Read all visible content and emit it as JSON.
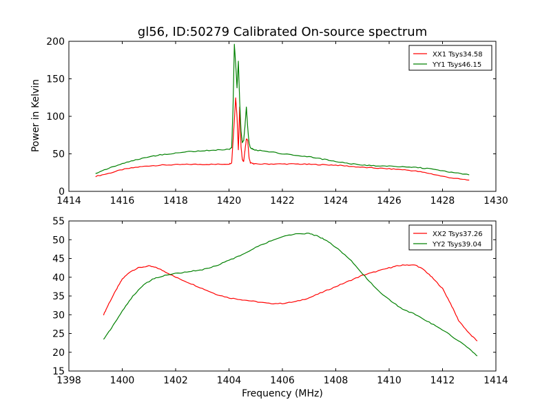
{
  "figure": {
    "title": "gl56, ID:50279 Calibrated On-source spectrum",
    "top_ylabel": "Power in Kelvin",
    "bottom_xlabel": "Frequency (MHz)"
  },
  "chart_data": [
    {
      "type": "line",
      "title": "gl56, ID:50279 Calibrated On-source spectrum",
      "xlabel": "",
      "ylabel": "Power in Kelvin",
      "xlim": [
        1414,
        1430
      ],
      "ylim": [
        0,
        200
      ],
      "xticks": [
        1414,
        1416,
        1418,
        1420,
        1422,
        1424,
        1426,
        1428,
        1430
      ],
      "yticks": [
        0,
        50,
        100,
        150,
        200
      ],
      "grid": false,
      "legend_position": "top-right",
      "series": [
        {
          "name": "XX1 Tsys34.58",
          "color": "#ff0000",
          "x": [
            1415.0,
            1415.5,
            1416.0,
            1416.5,
            1417.0,
            1417.5,
            1418.0,
            1418.5,
            1419.0,
            1419.5,
            1420.0,
            1420.1,
            1420.2,
            1420.25,
            1420.3,
            1420.35,
            1420.4,
            1420.45,
            1420.5,
            1420.55,
            1420.6,
            1420.65,
            1420.7,
            1420.75,
            1420.8,
            1420.9,
            1421.0,
            1421.5,
            1422.0,
            1422.5,
            1423.0,
            1423.5,
            1424.0,
            1424.5,
            1425.0,
            1425.5,
            1426.0,
            1426.5,
            1427.0,
            1427.5,
            1428.0,
            1428.5,
            1429.0
          ],
          "y": [
            20,
            24,
            29,
            32,
            34,
            35,
            35.5,
            36,
            36,
            36,
            36.5,
            38,
            95,
            125,
            100,
            55,
            112,
            60,
            42,
            40,
            55,
            70,
            68,
            45,
            38,
            37,
            36.5,
            36.5,
            36.5,
            36.5,
            36,
            35.5,
            35,
            33.5,
            32,
            31,
            30,
            29,
            27,
            24,
            20,
            17,
            15
          ]
        },
        {
          "name": "YY1 Tsys46.15",
          "color": "#008000",
          "x": [
            1415.0,
            1415.5,
            1416.0,
            1416.5,
            1417.0,
            1417.5,
            1418.0,
            1418.5,
            1419.0,
            1419.5,
            1420.0,
            1420.1,
            1420.15,
            1420.2,
            1420.25,
            1420.3,
            1420.35,
            1420.4,
            1420.45,
            1420.5,
            1420.55,
            1420.6,
            1420.65,
            1420.7,
            1420.75,
            1420.8,
            1420.9,
            1421.0,
            1421.5,
            1422.0,
            1422.5,
            1423.0,
            1423.5,
            1424.0,
            1424.5,
            1425.0,
            1425.5,
            1426.0,
            1426.5,
            1427.0,
            1427.5,
            1428.0,
            1428.5,
            1429.0
          ],
          "y": [
            24,
            31,
            37,
            42,
            46,
            49,
            51,
            53,
            54,
            55,
            56,
            58,
            110,
            196,
            170,
            138,
            173,
            120,
            80,
            65,
            68,
            88,
            113,
            85,
            65,
            58,
            56,
            55,
            53,
            50,
            48,
            46,
            43,
            40,
            37,
            35,
            34,
            33.5,
            33,
            32,
            30,
            27,
            25,
            22
          ]
        }
      ]
    },
    {
      "type": "line",
      "title": "",
      "xlabel": "Frequency (MHz)",
      "ylabel": "",
      "xlim": [
        1398,
        1414
      ],
      "ylim": [
        15,
        55
      ],
      "xticks": [
        1398,
        1400,
        1402,
        1404,
        1406,
        1408,
        1410,
        1412,
        1414
      ],
      "yticks": [
        15,
        20,
        25,
        30,
        35,
        40,
        45,
        50,
        55
      ],
      "grid": false,
      "legend_position": "top-right",
      "series": [
        {
          "name": "XX2 Tsys37.26",
          "color": "#ff0000",
          "x": [
            1399.3,
            1399.5,
            1399.8,
            1400.0,
            1400.3,
            1400.6,
            1401.0,
            1401.3,
            1401.6,
            1402.0,
            1402.5,
            1403.0,
            1403.5,
            1404.0,
            1404.5,
            1405.0,
            1405.5,
            1406.0,
            1406.5,
            1407.0,
            1407.5,
            1408.0,
            1408.5,
            1409.0,
            1409.5,
            1410.0,
            1410.3,
            1410.6,
            1411.0,
            1411.3,
            1411.6,
            1412.0,
            1412.3,
            1412.6,
            1413.0,
            1413.3
          ],
          "y": [
            30,
            33,
            37,
            39.5,
            41.5,
            42.5,
            43,
            42.5,
            41.5,
            40,
            38.5,
            37,
            35.5,
            34.5,
            34,
            33.5,
            33,
            33,
            33.5,
            34.5,
            36,
            37.5,
            39,
            40.5,
            41.5,
            42.5,
            43,
            43.3,
            43.2,
            42,
            40,
            37,
            33,
            28.5,
            25,
            23
          ]
        },
        {
          "name": "YY2 Tsys39.04",
          "color": "#008000",
          "x": [
            1399.3,
            1399.6,
            1400.0,
            1400.4,
            1400.8,
            1401.2,
            1401.6,
            1402.0,
            1402.5,
            1403.0,
            1403.5,
            1404.0,
            1404.5,
            1405.0,
            1405.5,
            1406.0,
            1406.5,
            1407.0,
            1407.3,
            1407.6,
            1408.0,
            1408.5,
            1409.0,
            1409.5,
            1410.0,
            1410.5,
            1411.0,
            1411.5,
            1412.0,
            1412.5,
            1413.0,
            1413.3
          ],
          "y": [
            23.5,
            26.5,
            31,
            35,
            38,
            39.7,
            40.5,
            41,
            41.5,
            42,
            43,
            44.5,
            46,
            48,
            49.5,
            50.8,
            51.5,
            51.7,
            51,
            50,
            48,
            45,
            41,
            37,
            34,
            31.5,
            30,
            28,
            26,
            23.5,
            21,
            19
          ]
        }
      ]
    }
  ]
}
